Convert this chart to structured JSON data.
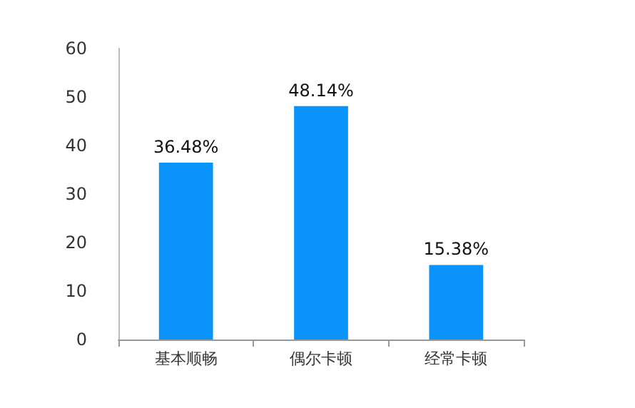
{
  "chart_data": {
    "type": "bar",
    "categories": [
      "基本顺畅",
      "偶尔卡顿",
      "经常卡顿"
    ],
    "values": [
      36.48,
      48.14,
      15.38
    ],
    "value_labels": [
      "36.48%",
      "48.14%",
      "15.38%"
    ],
    "color": "#0a93fa",
    "ylim": [
      0,
      60
    ],
    "yticks": [
      0,
      10,
      20,
      30,
      40,
      50,
      60
    ]
  }
}
